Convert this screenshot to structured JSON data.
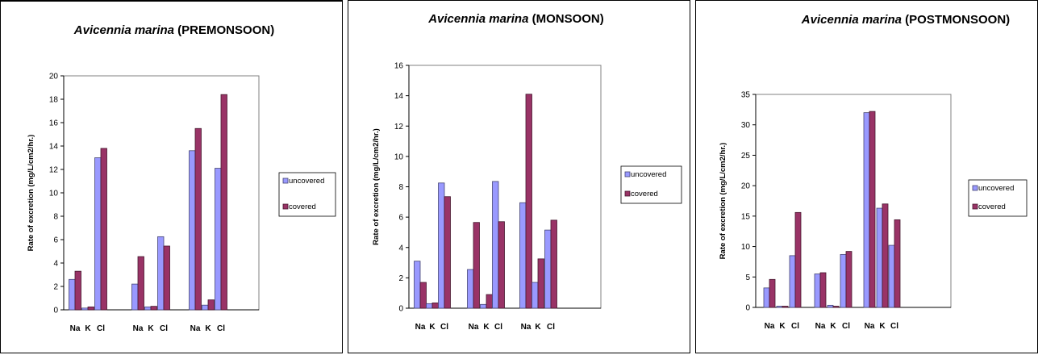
{
  "chart_data": [
    {
      "type": "bar",
      "title_species": "Avicennia marina",
      "title_season": "(PREMONSOON)",
      "ylabel": "Rate of excretion (mg/L/cm2/hr.)",
      "xlabel": "",
      "ylim": [
        0,
        20
      ],
      "ytick_step": 2,
      "categories": [
        "Na",
        "K",
        "Cl",
        "Na",
        "K",
        "Cl",
        "Na",
        "K",
        "Cl"
      ],
      "grid": false,
      "legend_placement": "right",
      "series": [
        {
          "name": "uncovered",
          "color": "#9999ff",
          "values": [
            2.6,
            0.15,
            13.0,
            2.2,
            0.25,
            6.25,
            13.6,
            0.4,
            12.1
          ]
        },
        {
          "name": "covered",
          "color": "#993366",
          "values": [
            3.3,
            0.25,
            13.8,
            4.55,
            0.3,
            5.45,
            15.5,
            0.85,
            18.4
          ]
        }
      ]
    },
    {
      "type": "bar",
      "title_species": "Avicennia marina",
      "title_season": "(MONSOON)",
      "ylabel": "Rate of excretion (mg/L/cm2/hr.)",
      "xlabel": "",
      "ylim": [
        0,
        16
      ],
      "ytick_step": 2,
      "categories": [
        "Na",
        "K",
        "Cl",
        "Na",
        "K",
        "Cl",
        "Na",
        "K",
        "Cl"
      ],
      "grid": false,
      "legend_placement": "right",
      "series": [
        {
          "name": "uncovered",
          "color": "#9999ff",
          "values": [
            3.1,
            0.3,
            8.25,
            2.55,
            0.25,
            8.35,
            6.95,
            1.7,
            5.15
          ]
        },
        {
          "name": "covered",
          "color": "#993366",
          "values": [
            1.7,
            0.35,
            7.35,
            5.65,
            0.9,
            5.7,
            14.1,
            3.25,
            5.8
          ]
        }
      ]
    },
    {
      "type": "bar",
      "title_species": "Avicennia marina",
      "title_season": "(POSTMONSOON)",
      "ylabel": "Rate of excretion (mg/L/cm2/hr.)",
      "xlabel": "",
      "ylim": [
        0,
        35
      ],
      "ytick_step": 5,
      "categories": [
        "Na",
        "K",
        "Cl",
        "Na",
        "K",
        "Cl",
        "Na",
        "K",
        "Cl"
      ],
      "grid": false,
      "legend_placement": "right",
      "series": [
        {
          "name": "uncovered",
          "color": "#9999ff",
          "values": [
            3.2,
            0.2,
            8.5,
            5.5,
            0.35,
            8.7,
            32.0,
            16.3,
            10.2
          ]
        },
        {
          "name": "covered",
          "color": "#993366",
          "values": [
            4.6,
            0.2,
            15.6,
            5.7,
            0.2,
            9.2,
            32.2,
            17.0,
            14.4
          ]
        }
      ]
    }
  ]
}
